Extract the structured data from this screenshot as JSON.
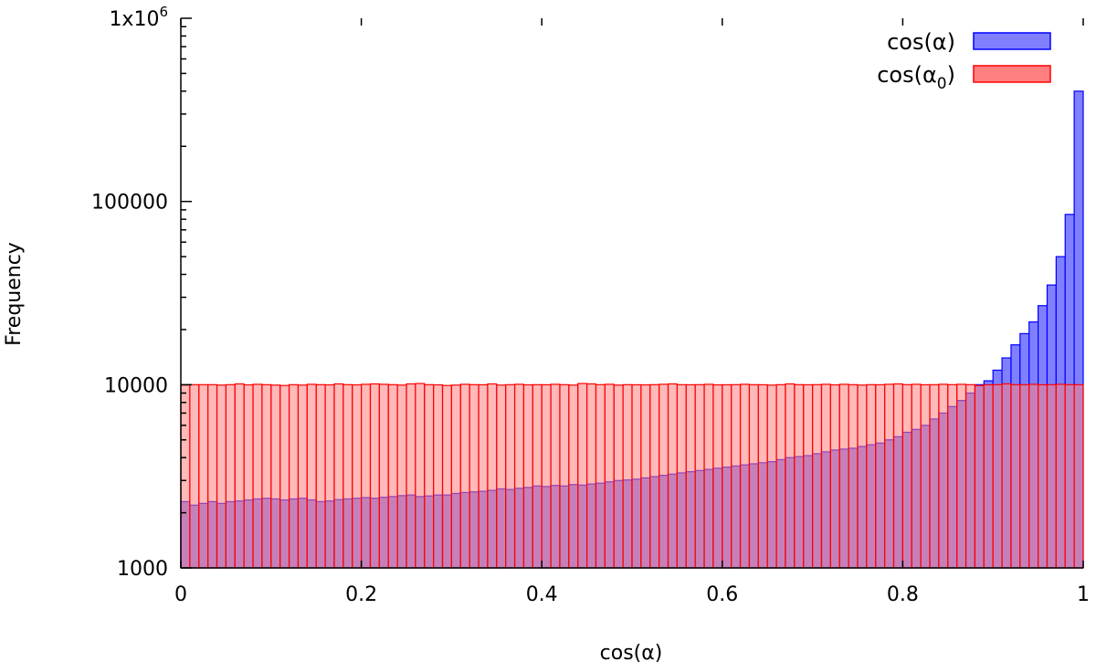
{
  "chart_data": {
    "type": "bar",
    "title": "",
    "xlabel": "cos(α)",
    "ylabel": "Frequency",
    "xlim": [
      0,
      1
    ],
    "ylim": [
      1000,
      1000000
    ],
    "y_scale": "log",
    "grid": false,
    "legend_position": "top-right",
    "bin_width": 0.01,
    "x_ticks": [
      {
        "value": 0,
        "label": "0"
      },
      {
        "value": 0.2,
        "label": "0.2"
      },
      {
        "value": 0.4,
        "label": "0.4"
      },
      {
        "value": 0.6,
        "label": "0.6"
      },
      {
        "value": 0.8,
        "label": "0.8"
      },
      {
        "value": 1,
        "label": "1"
      }
    ],
    "y_ticks": [
      {
        "value": 1000,
        "label": "1000"
      },
      {
        "value": 10000,
        "label": "10000"
      },
      {
        "value": 100000,
        "label": "100000"
      },
      {
        "value": 1000000,
        "label": "1x10",
        "sup": "6"
      }
    ],
    "series": [
      {
        "name": "cos(α)",
        "legend_main": "cos(α)",
        "legend_sub": "",
        "legend_tail": "",
        "color": "#0000ff",
        "fill": "#8080ff",
        "bin_starts": [
          0,
          0.01,
          0.02,
          0.03,
          0.04,
          0.05,
          0.06,
          0.07,
          0.08,
          0.09,
          0.1,
          0.11,
          0.12,
          0.13,
          0.14,
          0.15,
          0.16,
          0.17,
          0.18,
          0.19,
          0.2,
          0.21,
          0.22,
          0.23,
          0.24,
          0.25,
          0.26,
          0.27,
          0.28,
          0.29,
          0.3,
          0.31,
          0.32,
          0.33,
          0.34,
          0.35,
          0.36,
          0.37,
          0.38,
          0.39,
          0.4,
          0.41,
          0.42,
          0.43,
          0.44,
          0.45,
          0.46,
          0.47,
          0.48,
          0.49,
          0.5,
          0.51,
          0.52,
          0.53,
          0.54,
          0.55,
          0.56,
          0.57,
          0.58,
          0.59,
          0.6,
          0.61,
          0.62,
          0.63,
          0.64,
          0.65,
          0.66,
          0.67,
          0.68,
          0.69,
          0.7,
          0.71,
          0.72,
          0.73,
          0.74,
          0.75,
          0.76,
          0.77,
          0.78,
          0.79,
          0.8,
          0.81,
          0.82,
          0.83,
          0.84,
          0.85,
          0.86,
          0.87,
          0.88,
          0.89,
          0.9,
          0.91,
          0.92,
          0.93,
          0.94,
          0.95,
          0.96,
          0.97,
          0.98,
          0.99
        ],
        "values": [
          2300,
          2200,
          2250,
          2300,
          2250,
          2300,
          2320,
          2350,
          2380,
          2400,
          2380,
          2350,
          2380,
          2400,
          2350,
          2300,
          2320,
          2360,
          2380,
          2400,
          2420,
          2400,
          2430,
          2450,
          2480,
          2500,
          2450,
          2470,
          2500,
          2500,
          2550,
          2580,
          2600,
          2620,
          2650,
          2700,
          2680,
          2720,
          2750,
          2800,
          2780,
          2820,
          2800,
          2850,
          2830,
          2870,
          2900,
          2950,
          3000,
          3020,
          3050,
          3100,
          3150,
          3200,
          3250,
          3300,
          3350,
          3400,
          3450,
          3500,
          3550,
          3600,
          3650,
          3700,
          3750,
          3800,
          3900,
          4000,
          4050,
          4100,
          4200,
          4300,
          4400,
          4450,
          4500,
          4600,
          4700,
          4800,
          5000,
          5200,
          5500,
          5700,
          6000,
          6500,
          7000,
          7600,
          8200,
          9000,
          10000,
          10500,
          12000,
          14000,
          16500,
          19000,
          22000,
          27000,
          35000,
          50000,
          85000,
          400000
        ]
      },
      {
        "name": "cos(α0)",
        "legend_main": "cos(α",
        "legend_sub": "0",
        "legend_tail": ")",
        "color": "#ff0000",
        "fill": "#ff8080",
        "bin_starts": [
          0,
          0.01,
          0.02,
          0.03,
          0.04,
          0.05,
          0.06,
          0.07,
          0.08,
          0.09,
          0.1,
          0.11,
          0.12,
          0.13,
          0.14,
          0.15,
          0.16,
          0.17,
          0.18,
          0.19,
          0.2,
          0.21,
          0.22,
          0.23,
          0.24,
          0.25,
          0.26,
          0.27,
          0.28,
          0.29,
          0.3,
          0.31,
          0.32,
          0.33,
          0.34,
          0.35,
          0.36,
          0.37,
          0.38,
          0.39,
          0.4,
          0.41,
          0.42,
          0.43,
          0.44,
          0.45,
          0.46,
          0.47,
          0.48,
          0.49,
          0.5,
          0.51,
          0.52,
          0.53,
          0.54,
          0.55,
          0.56,
          0.57,
          0.58,
          0.59,
          0.6,
          0.61,
          0.62,
          0.63,
          0.64,
          0.65,
          0.66,
          0.67,
          0.68,
          0.69,
          0.7,
          0.71,
          0.72,
          0.73,
          0.74,
          0.75,
          0.76,
          0.77,
          0.78,
          0.79,
          0.8,
          0.81,
          0.82,
          0.83,
          0.84,
          0.85,
          0.86,
          0.87,
          0.88,
          0.89,
          0.9,
          0.91,
          0.92,
          0.93,
          0.94,
          0.95,
          0.96,
          0.97,
          0.98,
          0.99
        ],
        "values": [
          9950,
          10000,
          10000,
          10000,
          9950,
          10000,
          10100,
          9980,
          10050,
          10000,
          9950,
          9900,
          10000,
          9950,
          10050,
          10000,
          9980,
          10100,
          10000,
          9980,
          10050,
          10100,
          10050,
          10000,
          9950,
          10100,
          10150,
          10000,
          9980,
          9900,
          9950,
          10050,
          10000,
          9990,
          10100,
          9950,
          10000,
          10050,
          9980,
          10000,
          9990,
          10050,
          10000,
          9950,
          10150,
          10100,
          10000,
          10050,
          9950,
          10000,
          9990,
          9980,
          10000,
          10050,
          10100,
          10000,
          9990,
          10000,
          10050,
          9980,
          9990,
          10000,
          10050,
          10000,
          9990,
          9950,
          10000,
          10100,
          10000,
          9990,
          10000,
          10050,
          9980,
          10050,
          10000,
          9950,
          10000,
          9990,
          10050,
          10100,
          10000,
          10050,
          9990,
          10000,
          10050,
          10000,
          10050,
          10000,
          9900,
          9990,
          10000,
          10100,
          10000,
          10000,
          10050,
          9990,
          10000,
          10050,
          10000,
          10000
        ]
      }
    ]
  }
}
